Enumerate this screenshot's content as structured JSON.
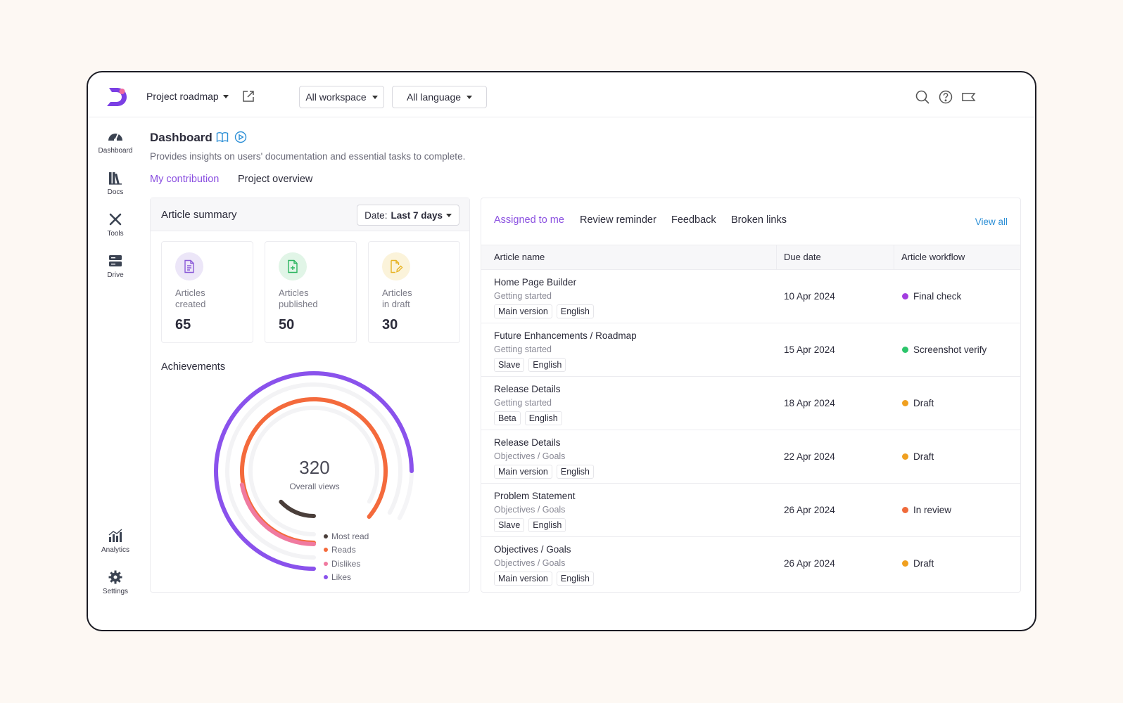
{
  "colors": {
    "accent": "#8a4fe0",
    "link": "#2c8fd6",
    "final_check": "#a33ee0",
    "screenshot_verify": "#2cc56b",
    "draft": "#f0a020",
    "in_review": "#f06a3a",
    "likes": "#8a52ec",
    "dislikes": "#f07aa0",
    "reads": "#f46a3c",
    "most_read": "#4a3e3a"
  },
  "topbar": {
    "project": "Project roadmap",
    "workspace": "All workspace",
    "language": "All language",
    "icons": [
      "search-icon",
      "help-icon",
      "announcement-icon"
    ]
  },
  "sidebar": {
    "items": [
      {
        "label": "Dashboard",
        "icon": "dashboard-gauge-icon"
      },
      {
        "label": "Docs",
        "icon": "books-icon"
      },
      {
        "label": "Tools",
        "icon": "tools-icon"
      },
      {
        "label": "Drive",
        "icon": "drive-icon"
      },
      {
        "label": "Analytics",
        "icon": "analytics-icon"
      },
      {
        "label": "Settings",
        "icon": "gear-icon"
      }
    ]
  },
  "header": {
    "title": "Dashboard",
    "description": "Provides insights on users' documentation and essential tasks to complete.",
    "tabs": [
      "My contribution",
      "Project overview"
    ]
  },
  "summary": {
    "title": "Article summary",
    "date_label": "Date:",
    "date_value": "Last 7 days",
    "stats": [
      {
        "label_line1": "Articles",
        "label_line2": "created",
        "value": "65"
      },
      {
        "label_line1": "Articles",
        "label_line2": "published",
        "value": "50"
      },
      {
        "label_line1": "Articles",
        "label_line2": "in draft",
        "value": "30"
      }
    ],
    "achievements_title": "Achievements"
  },
  "chart_data": {
    "type": "radial-bar",
    "center_value": "320",
    "center_label": "Overall views",
    "series": [
      {
        "name": "Most read",
        "value": 0.13
      },
      {
        "name": "Reads",
        "value": 0.86
      },
      {
        "name": "Dislikes",
        "value": 0.22
      },
      {
        "name": "Likes",
        "value": 0.75
      }
    ]
  },
  "tasks": {
    "tabs": [
      "Assigned to me",
      "Review reminder",
      "Feedback",
      "Broken links"
    ],
    "view_all": "View all",
    "columns": [
      "Article name",
      "Due date",
      "Article workflow"
    ],
    "rows": [
      {
        "name": "Home Page Builder",
        "category": "Getting started",
        "tags": [
          "Main version",
          "English"
        ],
        "due": "10 Apr 2024",
        "status": "Final check",
        "status_color": "#a33ee0"
      },
      {
        "name": "Future Enhancements / Roadmap",
        "category": "Getting started",
        "tags": [
          "Slave",
          "English"
        ],
        "due": "15 Apr 2024",
        "status": "Screenshot verify",
        "status_color": "#2cc56b"
      },
      {
        "name": "Release Details",
        "category": "Getting started",
        "tags": [
          "Beta",
          "English"
        ],
        "due": "18 Apr 2024",
        "status": "Draft",
        "status_color": "#f0a020"
      },
      {
        "name": "Release Details",
        "category": "Objectives / Goals",
        "tags": [
          "Main version",
          "English"
        ],
        "due": "22 Apr 2024",
        "status": "Draft",
        "status_color": "#f0a020"
      },
      {
        "name": "Problem Statement",
        "category": "Objectives / Goals",
        "tags": [
          "Slave",
          "English"
        ],
        "due": "26 Apr 2024",
        "status": "In review",
        "status_color": "#f06a3a"
      },
      {
        "name": "Objectives / Goals",
        "category": "Objectives / Goals",
        "tags": [
          "Main version",
          "English"
        ],
        "due": "26 Apr 2024",
        "status": "Draft",
        "status_color": "#f0a020"
      }
    ]
  }
}
